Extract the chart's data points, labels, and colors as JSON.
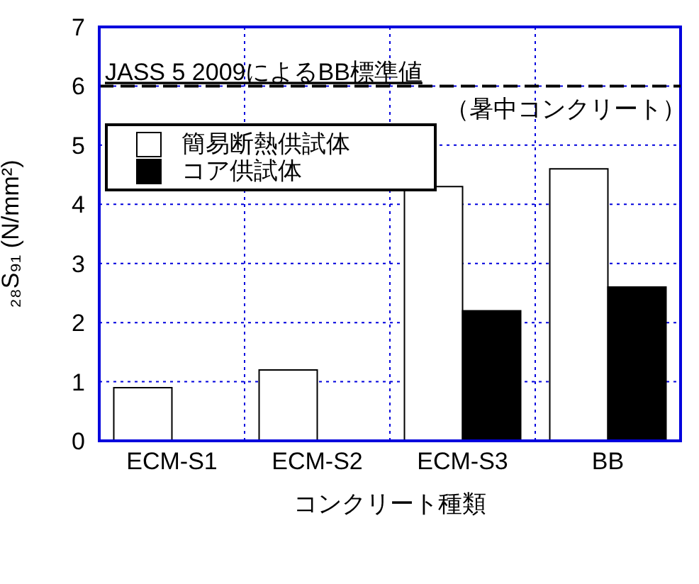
{
  "chart_data": {
    "type": "bar",
    "xlabel": "コンクリート種類",
    "ylabel": "₂₈S₉₁ (N/mm²)",
    "categories": [
      "ECM-S1",
      "ECM-S2",
      "ECM-S3",
      "BB"
    ],
    "series": [
      {
        "name": "簡易断熱供試体",
        "color": "#ffffff",
        "values": [
          0.9,
          1.2,
          4.3,
          4.6
        ]
      },
      {
        "name": "コア供試体",
        "color": "#000000",
        "values": [
          null,
          null,
          2.2,
          2.6
        ]
      }
    ],
    "ylim": [
      0,
      7
    ],
    "yticks": [
      0,
      1,
      2,
      3,
      4,
      5,
      6,
      7
    ],
    "grid": true,
    "legend": "top left",
    "ref_lines": [
      {
        "axis": "y",
        "value": 6,
        "label": "JASS 5 2009によるBB標準値",
        "color": "#000000",
        "line_style": "dashed"
      }
    ],
    "annotations": [
      "（暑中コンクリート）"
    ]
  }
}
